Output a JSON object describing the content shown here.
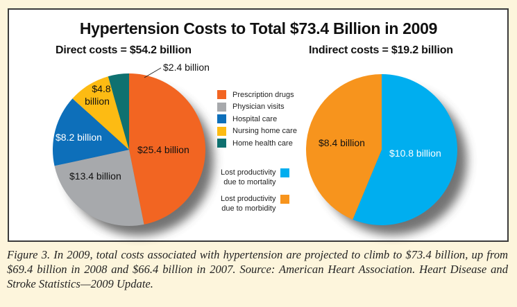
{
  "chart_data": [
    {
      "type": "pie",
      "title": "Hypertension Costs to Total $73.4 Billion in 2009",
      "subtitle": "Direct costs = $54.2 billion",
      "unit": "billion USD",
      "slices": [
        {
          "name": "Prescription drugs",
          "value": 25.4,
          "label": "$25.4 billion",
          "color": "#f26522"
        },
        {
          "name": "Physician visits",
          "value": 13.4,
          "label": "$13.4 billion",
          "color": "#a7a9ac"
        },
        {
          "name": "Hospital care",
          "value": 8.2,
          "label": "$8.2 billion",
          "color": "#0d6fba"
        },
        {
          "name": "Nursing home care",
          "value": 4.8,
          "label_line1": "$4.8",
          "label_line2": "billion",
          "label": "$4.8 billion",
          "color": "#fdbb13"
        },
        {
          "name": "Home health care",
          "value": 2.4,
          "label": "$2.4 billion",
          "color": "#0f7170"
        }
      ],
      "legend_position": "right"
    },
    {
      "type": "pie",
      "subtitle": "Indirect costs = $19.2 billion",
      "unit": "billion USD",
      "slices": [
        {
          "name_line1": "Lost productivity",
          "name_line2": "due to mortality",
          "name": "Lost productivity due to mortality",
          "value": 10.8,
          "label": "$10.8 billion",
          "color": "#00aeef"
        },
        {
          "name_line1": "Lost productivity",
          "name_line2": "due to morbidity",
          "name": "Lost productivity due to morbidity",
          "value": 8.4,
          "label": "$8.4 billion",
          "color": "#f7941d"
        }
      ],
      "legend_position": "left"
    }
  ],
  "caption": "Figure 3. In 2009, total costs associated with hypertension are projected to climb to $73.4 billion, up from $69.4 billion in 2008 and $66.4 billion in 2007. Source: American Heart Association. Heart Disease and Stroke Statistics—2009 Update."
}
